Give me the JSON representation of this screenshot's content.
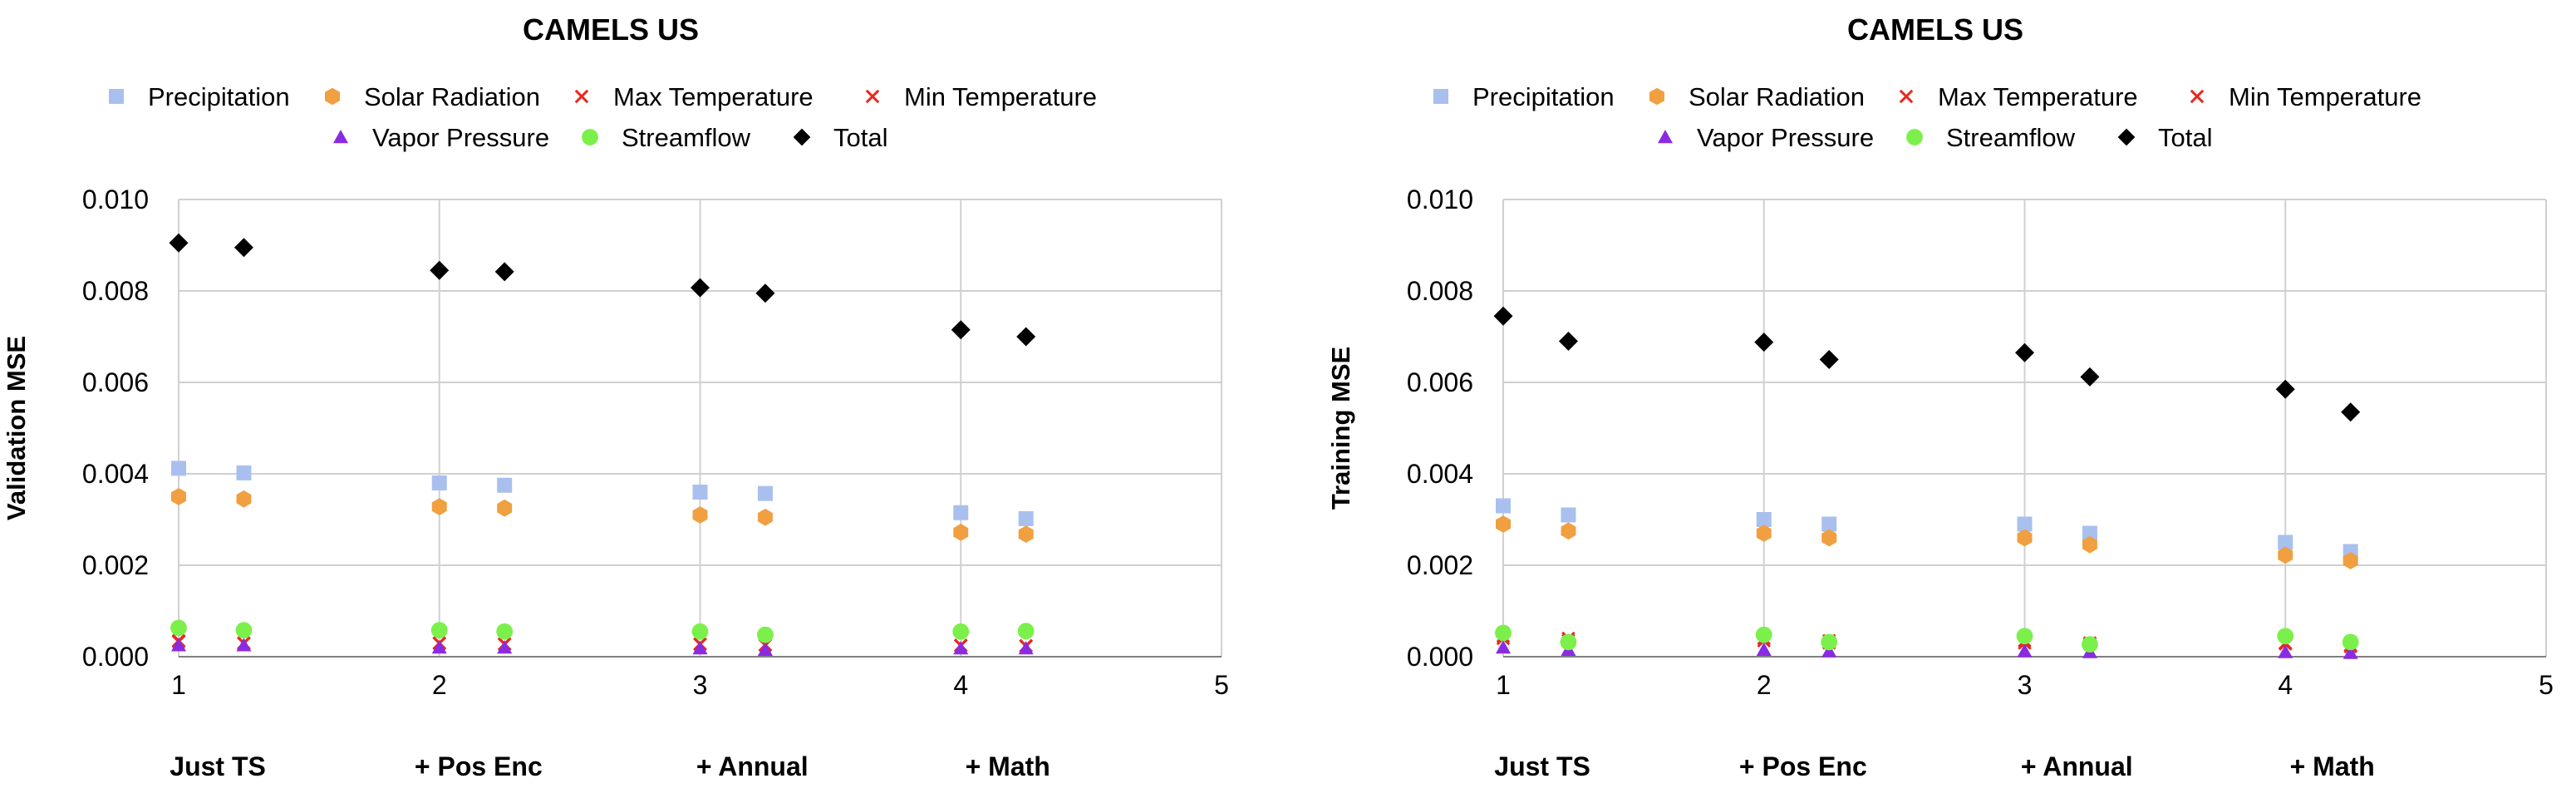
{
  "chart_data": [
    {
      "type": "scatter",
      "title": "CAMELS US",
      "ylabel": "Validation MSE",
      "xlabel": "",
      "xlim": [
        1,
        5
      ],
      "ylim": [
        0,
        0.01
      ],
      "x_ticks": [
        1,
        2,
        3,
        4,
        5
      ],
      "y_ticks": [
        "0.000",
        "0.002",
        "0.004",
        "0.006",
        "0.008",
        "0.010"
      ],
      "category_labels": [
        "Just TS",
        "+ Pos Enc",
        "+ Annual",
        "+ Math"
      ],
      "x": [
        1,
        1.25,
        2,
        2.25,
        3,
        3.25,
        4,
        4.25
      ],
      "series": [
        {
          "name": "Precipitation",
          "marker": "square",
          "color": "#a9c0ee",
          "values": [
            0.00412,
            0.00402,
            0.0038,
            0.00375,
            0.0036,
            0.00357,
            0.00315,
            0.00302
          ]
        },
        {
          "name": "Solar Radiation",
          "marker": "hexagon",
          "color": "#f0a040",
          "values": [
            0.0035,
            0.00345,
            0.00328,
            0.00325,
            0.0031,
            0.00305,
            0.00272,
            0.00268
          ]
        },
        {
          "name": "Max Temperature",
          "marker": "x",
          "color": "#e8281e",
          "values": [
            0.00035,
            0.0003,
            0.0003,
            0.00028,
            0.00028,
            0.00026,
            0.00025,
            0.00024
          ]
        },
        {
          "name": "Min Temperature",
          "marker": "x",
          "color": "#e8281e",
          "values": [
            0.00033,
            0.00029,
            0.00029,
            0.00027,
            0.00027,
            0.00025,
            0.00024,
            0.00023
          ]
        },
        {
          "name": "Vapor Pressure",
          "marker": "triangle",
          "color": "#8a2be2",
          "values": [
            0.00025,
            0.00025,
            0.0002,
            0.0002,
            0.00018,
            0.00015,
            0.00018,
            0.00018
          ]
        },
        {
          "name": "Streamflow",
          "marker": "circle",
          "color": "#7cf04a",
          "values": [
            0.00063,
            0.00058,
            0.00058,
            0.00055,
            0.00055,
            0.00048,
            0.00055,
            0.00056
          ]
        },
        {
          "name": "Total",
          "marker": "diamond",
          "color": "#000000",
          "values": [
            0.00905,
            0.00895,
            0.00845,
            0.00842,
            0.00807,
            0.00795,
            0.00715,
            0.007
          ]
        }
      ]
    },
    {
      "type": "scatter",
      "title": "CAMELS US",
      "ylabel": "Training MSE",
      "xlabel": "",
      "xlim": [
        1,
        5
      ],
      "ylim": [
        0,
        0.01
      ],
      "x_ticks": [
        1,
        2,
        3,
        4,
        5
      ],
      "y_ticks": [
        "0.000",
        "0.002",
        "0.004",
        "0.006",
        "0.008",
        "0.010"
      ],
      "category_labels": [
        "Just TS",
        "+ Pos Enc",
        "+ Annual",
        "+ Math"
      ],
      "x": [
        1,
        1.25,
        2,
        2.25,
        3,
        3.25,
        4,
        4.25
      ],
      "series": [
        {
          "name": "Precipitation",
          "marker": "square",
          "color": "#a9c0ee",
          "values": [
            0.0033,
            0.0031,
            0.003,
            0.0029,
            0.0029,
            0.0027,
            0.0025,
            0.0023
          ]
        },
        {
          "name": "Solar Radiation",
          "marker": "hexagon",
          "color": "#f0a040",
          "values": [
            0.0029,
            0.00275,
            0.0027,
            0.0026,
            0.0026,
            0.00245,
            0.00222,
            0.0021
          ]
        },
        {
          "name": "Max Temperature",
          "marker": "x",
          "color": "#e8281e",
          "values": [
            0.00045,
            0.0004,
            0.0004,
            0.00035,
            0.00035,
            0.0003,
            0.0003,
            0.00025
          ]
        },
        {
          "name": "Min Temperature",
          "marker": "x",
          "color": "#e8281e",
          "values": [
            0.0004,
            0.00035,
            0.00035,
            0.0003,
            0.0003,
            0.00028,
            0.00028,
            0.00022
          ]
        },
        {
          "name": "Vapor Pressure",
          "marker": "triangle",
          "color": "#8a2be2",
          "values": [
            0.0002,
            0.00015,
            0.00015,
            0.00012,
            0.00012,
            0.0001,
            0.0001,
            8e-05
          ]
        },
        {
          "name": "Streamflow",
          "marker": "circle",
          "color": "#7cf04a",
          "values": [
            0.00052,
            0.00032,
            0.00048,
            0.00032,
            0.00045,
            0.00027,
            0.00045,
            0.00032
          ]
        },
        {
          "name": "Total",
          "marker": "diamond",
          "color": "#000000",
          "values": [
            0.00745,
            0.0069,
            0.00688,
            0.0065,
            0.00665,
            0.00612,
            0.00585,
            0.00535
          ]
        }
      ]
    }
  ]
}
